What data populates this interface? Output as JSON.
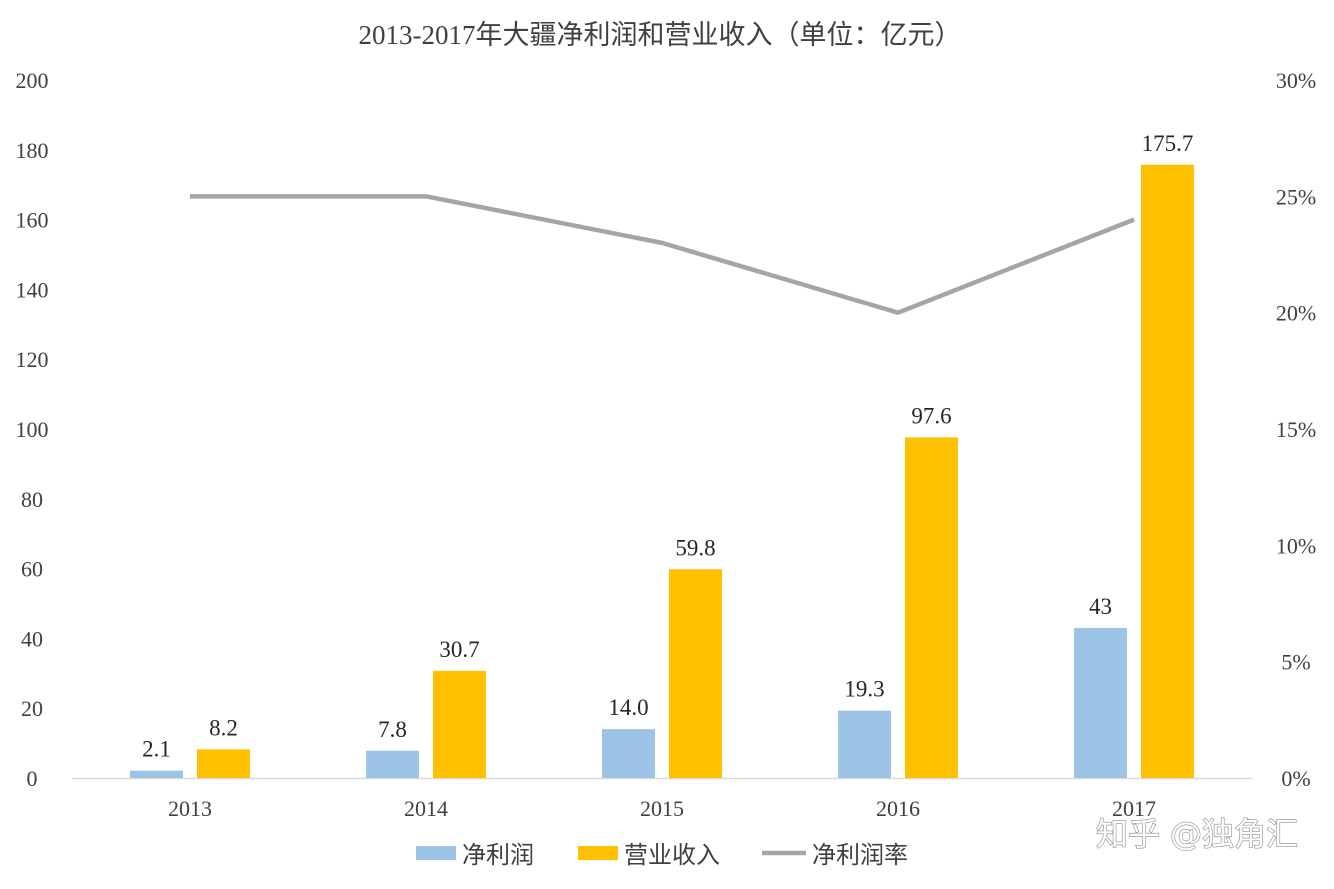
{
  "chart_data": {
    "type": "bar",
    "title": "2013-2017年大疆净利润和营业收入（单位：亿元）",
    "categories": [
      "2013",
      "2014",
      "2015",
      "2016",
      "2017"
    ],
    "series": [
      {
        "name": "净利润",
        "kind": "bar",
        "axis": "left",
        "color": "#9dc3e6",
        "values": [
          2.1,
          7.8,
          14.0,
          19.3,
          43
        ],
        "labels": [
          "2.1",
          "7.8",
          "14.0",
          "19.3",
          "43"
        ]
      },
      {
        "name": "营业收入",
        "kind": "bar",
        "axis": "left",
        "color": "#ffc000",
        "values": [
          8.2,
          30.7,
          59.8,
          97.6,
          175.7
        ],
        "labels": [
          "8.2",
          "30.7",
          "59.8",
          "97.6",
          "175.7"
        ]
      },
      {
        "name": "净利润率",
        "kind": "line",
        "axis": "right",
        "color": "#a5a5a5",
        "values": [
          0.25,
          0.25,
          0.23,
          0.2,
          0.24
        ]
      }
    ],
    "y_left": {
      "min": 0,
      "max": 200,
      "ticks": [
        "0",
        "20",
        "40",
        "60",
        "80",
        "100",
        "120",
        "140",
        "160",
        "180",
        "200"
      ]
    },
    "y_right": {
      "min": 0,
      "max": 0.3,
      "ticks": [
        "0%",
        "5%",
        "10%",
        "15%",
        "20%",
        "25%",
        "30%"
      ]
    },
    "grid": false,
    "legend_position": "bottom"
  },
  "watermark": "知乎 @独角汇"
}
